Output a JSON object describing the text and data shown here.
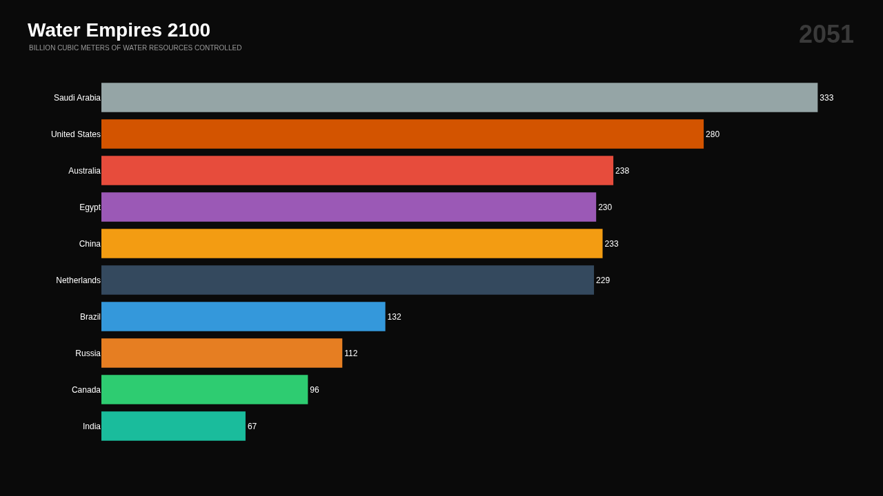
{
  "chart_data": {
    "type": "bar",
    "orientation": "horizontal",
    "title": "Water Empires 2100",
    "subtitle": "BILLION CUBIC METERS OF WATER RESOURCES CONTROLLED",
    "categories": [
      "Saudi Arabia",
      "United States",
      "Australia",
      "Egypt",
      "China",
      "Netherlands",
      "Brazil",
      "Russia",
      "Canada",
      "India"
    ],
    "values": [
      333,
      280,
      238,
      230,
      233,
      229,
      132,
      112,
      96,
      67
    ],
    "colors": [
      "#95a5a6",
      "#d35400",
      "#e74c3c",
      "#9b59b6",
      "#f39c12",
      "#34495e",
      "#3498db",
      "#e67e22",
      "#2ecc71",
      "#1abc9c"
    ],
    "data_labels": true,
    "grid": false,
    "tick_labels": "y",
    "annotations": [
      "2051"
    ]
  }
}
